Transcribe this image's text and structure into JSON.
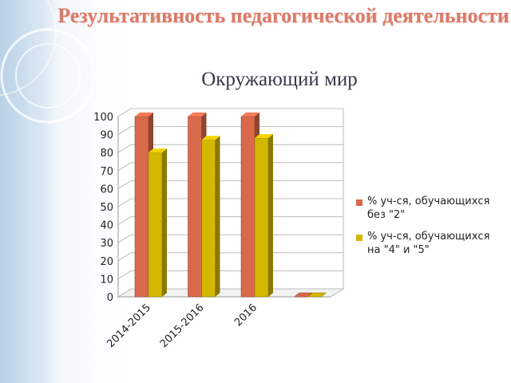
{
  "page": {
    "title": "Результативность педагогической деятельности",
    "subtitle": "Окружающий мир"
  },
  "chart_data": {
    "type": "bar",
    "categories": [
      "2014-2015",
      "2015-2016",
      "2016",
      ""
    ],
    "series": [
      {
        "name": "% уч-ся, обучающихся без \"2\"",
        "values": [
          100,
          100,
          100,
          0
        ],
        "color": "#d9694b"
      },
      {
        "name": "% уч-ся, обучающихся на \"4\" и \"5\"",
        "values": [
          80,
          87,
          88,
          0
        ],
        "color": "#d4b800"
      }
    ],
    "yticks": [
      0,
      10,
      20,
      30,
      40,
      50,
      60,
      70,
      80,
      90,
      100
    ],
    "ylim": [
      0,
      100
    ],
    "grid": true,
    "legend": "right",
    "three_d": true
  }
}
